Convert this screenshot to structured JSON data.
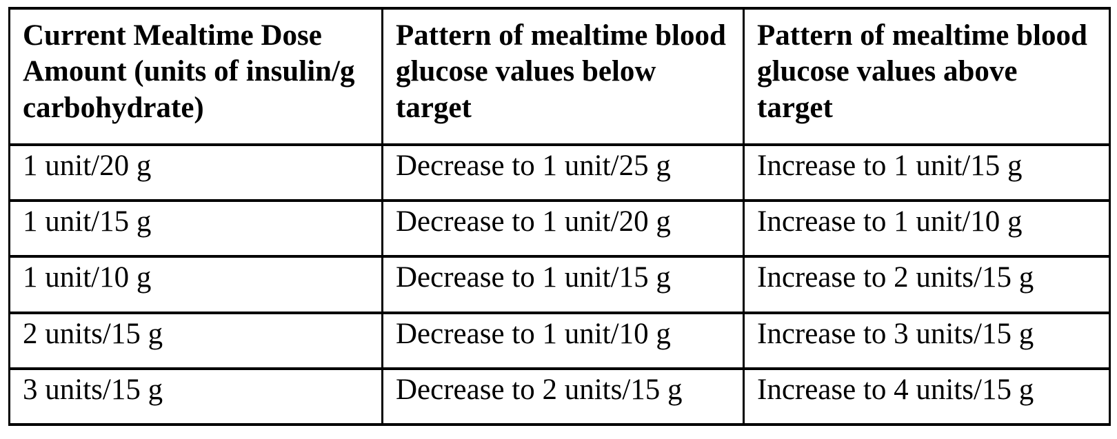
{
  "table": {
    "headers": [
      "Current Mealtime Dose Amount (units of insulin/g carbohydrate)",
      "Pattern of mealtime blood glucose values below target",
      "Pattern of mealtime blood glucose values above target"
    ],
    "rows": [
      [
        "1 unit/20 g",
        "Decrease to 1 unit/25 g",
        "Increase to 1 unit/15 g"
      ],
      [
        "1 unit/15 g",
        "Decrease to 1 unit/20 g",
        "Increase to 1 unit/10 g"
      ],
      [
        "1 unit/10 g",
        "Decrease to 1 unit/15 g",
        "Increase to 2 units/15 g"
      ],
      [
        "2 units/15 g",
        "Decrease to 1 unit/10 g",
        "Increase to 3 units/15 g"
      ],
      [
        "3 units/15 g",
        "Decrease to 2 units/15 g",
        "Increase to 4 units/15 g"
      ]
    ]
  },
  "colors": {
    "text": "#000000",
    "border": "#000000",
    "background": "#ffffff"
  }
}
